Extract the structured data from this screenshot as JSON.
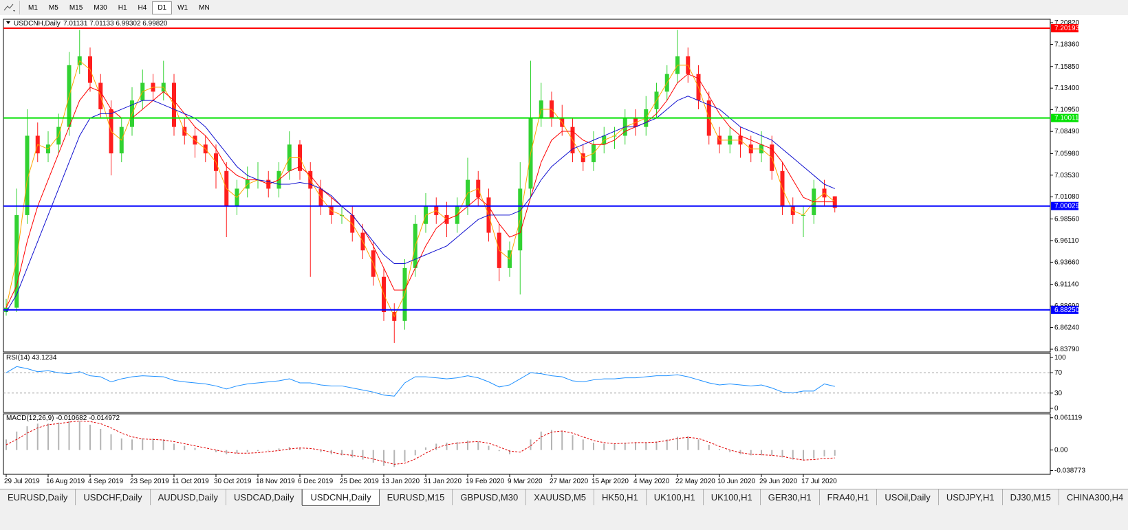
{
  "toolbar": {
    "timeframes": [
      "M1",
      "M5",
      "M15",
      "M30",
      "H1",
      "H4",
      "D1",
      "W1",
      "MN"
    ],
    "active": "D1"
  },
  "tabs": {
    "items": [
      "EURUSD,Daily",
      "USDCHF,Daily",
      "AUDUSD,Daily",
      "USDCAD,Daily",
      "USDCNH,Daily",
      "EURUSD,M15",
      "GBPUSD,M30",
      "XAUUSD,M5",
      "HK50,H1",
      "UK100,H1",
      "UK100,H1",
      "GER30,H1",
      "FRA40,H1",
      "USOil,Daily",
      "USDJPY,H1",
      "DJ30,M15",
      "CHINA300,H4"
    ],
    "active": "USDCNH,Daily"
  },
  "chart_data": [
    {
      "type": "candlestick",
      "title": "USDCNH,Daily",
      "subtitle": "7.01131 7.01133 6.99302 6.99820",
      "categories": [
        "29 Jul 2019",
        null,
        null,
        null,
        "16 Aug 2019",
        null,
        null,
        null,
        "4 Sep 2019",
        null,
        null,
        null,
        "23 Sep 2019",
        null,
        null,
        null,
        "11 Oct 2019",
        null,
        null,
        null,
        "30 Oct 2019",
        null,
        null,
        null,
        "18 Nov 2019",
        null,
        null,
        null,
        "6 Dec 2019",
        null,
        null,
        null,
        "25 Dec 2019",
        null,
        null,
        null,
        "13 Jan 2020",
        null,
        null,
        null,
        "31 Jan 2020",
        null,
        null,
        null,
        "19 Feb 2020",
        null,
        null,
        null,
        "9 Mar 2020",
        null,
        null,
        null,
        "27 Mar 2020",
        null,
        null,
        null,
        "15 Apr 2020",
        null,
        null,
        null,
        "4 May 2020",
        null,
        null,
        null,
        "22 May 2020",
        null,
        null,
        null,
        "10 Jun 2020",
        null,
        null,
        null,
        "29 Jun 2020",
        null,
        null,
        null,
        "17 Jul 2020",
        null,
        null,
        null
      ],
      "open": [
        6.88,
        6.885,
        6.99,
        7.08,
        7.06,
        7.07,
        7.09,
        7.16,
        7.17,
        7.14,
        7.11,
        7.06,
        7.09,
        7.12,
        7.14,
        7.13,
        7.14,
        7.09,
        7.08,
        7.07,
        7.06,
        7.04,
        7.0,
        7.02,
        7.03,
        7.03,
        7.02,
        7.04,
        7.07,
        7.04,
        7.02,
        7.0,
        6.99,
        6.99,
        6.97,
        6.95,
        6.92,
        6.88,
        6.87,
        6.93,
        6.98,
        7.0,
        6.99,
        6.98,
        7.0,
        7.03,
        7.01,
        6.97,
        6.93,
        6.95,
        7.02,
        7.1,
        7.12,
        7.1,
        7.09,
        7.06,
        7.05,
        7.07,
        7.08,
        7.08,
        7.1,
        7.09,
        7.11,
        7.13,
        7.15,
        7.17,
        7.15,
        7.12,
        7.08,
        7.07,
        7.08,
        7.07,
        7.06,
        7.07,
        7.04,
        7.0,
        6.99,
        6.99,
        7.02,
        7.01131
      ],
      "high": [
        6.895,
        7.02,
        7.11,
        7.095,
        7.085,
        7.105,
        7.175,
        7.2,
        7.18,
        7.15,
        7.12,
        7.1,
        7.135,
        7.155,
        7.15,
        7.165,
        7.15,
        7.1,
        7.09,
        7.08,
        7.07,
        7.05,
        7.03,
        7.045,
        7.05,
        7.04,
        7.05,
        7.085,
        7.075,
        7.05,
        7.03,
        7.01,
        7.0,
        7.0,
        6.98,
        6.96,
        6.93,
        6.89,
        6.94,
        6.99,
        7.015,
        7.01,
        7.005,
        7.01,
        7.055,
        7.04,
        7.02,
        6.98,
        6.96,
        7.05,
        7.165,
        7.14,
        7.13,
        7.115,
        7.1,
        7.07,
        7.085,
        7.09,
        7.09,
        7.11,
        7.11,
        7.125,
        7.14,
        7.16,
        7.2,
        7.18,
        7.16,
        7.13,
        7.09,
        7.09,
        7.09,
        7.08,
        7.085,
        7.08,
        7.05,
        7.01,
        7.0,
        7.03,
        7.03,
        7.01133
      ],
      "low": [
        6.876,
        6.88,
        6.98,
        7.05,
        7.05,
        7.06,
        7.08,
        7.15,
        7.13,
        7.1,
        7.035,
        7.05,
        7.08,
        7.11,
        7.12,
        7.12,
        7.08,
        7.07,
        7.055,
        7.05,
        7.02,
        6.965,
        6.99,
        7.01,
        7.02,
        7.01,
        7.01,
        7.03,
        7.03,
        6.92,
        6.99,
        6.98,
        6.98,
        6.96,
        6.94,
        6.91,
        6.87,
        6.845,
        6.86,
        6.92,
        6.97,
        6.98,
        6.965,
        6.97,
        6.99,
        7.0,
        6.96,
        6.915,
        6.92,
        6.9,
        7.01,
        7.09,
        7.09,
        7.08,
        7.05,
        7.04,
        7.04,
        7.06,
        7.065,
        7.07,
        7.08,
        7.08,
        7.1,
        7.12,
        7.14,
        7.14,
        7.11,
        7.07,
        7.06,
        7.06,
        7.055,
        7.05,
        7.05,
        7.03,
        6.99,
        6.98,
        6.965,
        6.98,
        7.0,
        6.99302
      ],
      "close": [
        6.885,
        6.99,
        7.08,
        7.06,
        7.07,
        7.09,
        7.16,
        7.17,
        7.14,
        7.11,
        7.06,
        7.09,
        7.12,
        7.14,
        7.13,
        7.14,
        7.09,
        7.08,
        7.07,
        7.06,
        7.04,
        7.0,
        7.02,
        7.03,
        7.03,
        7.02,
        7.04,
        7.07,
        7.04,
        7.02,
        7.0,
        6.99,
        6.99,
        6.97,
        6.95,
        6.92,
        6.88,
        6.87,
        6.93,
        6.98,
        7.0,
        6.99,
        6.98,
        7.0,
        7.03,
        7.01,
        6.97,
        6.93,
        6.95,
        7.02,
        7.1,
        7.12,
        7.1,
        7.09,
        7.06,
        7.05,
        7.07,
        7.08,
        7.08,
        7.1,
        7.09,
        7.11,
        7.13,
        7.15,
        7.17,
        7.15,
        7.12,
        7.08,
        7.07,
        7.08,
        7.07,
        7.06,
        7.07,
        7.04,
        7.0,
        6.99,
        6.99,
        7.02,
        7.01,
        6.9982
      ],
      "up_color": "#32d232",
      "down_color": "#ff1e1e",
      "series": [
        {
          "color": "#ffa500",
          "values": [
            6.885,
            6.94,
            7.03,
            7.07,
            7.065,
            7.08,
            7.125,
            7.165,
            7.155,
            7.125,
            7.085,
            7.075,
            7.105,
            7.13,
            7.135,
            7.135,
            7.115,
            7.085,
            7.075,
            7.065,
            7.05,
            7.02,
            7.01,
            7.025,
            7.03,
            7.025,
            7.03,
            7.055,
            7.055,
            7.03,
            7.01,
            6.995,
            6.99,
            6.98,
            6.96,
            6.935,
            6.9,
            6.875,
            6.9,
            6.955,
            6.99,
            6.995,
            6.985,
            6.99,
            7.015,
            7.02,
            6.99,
            6.95,
            6.94,
            6.985,
            7.06,
            7.11,
            7.11,
            7.095,
            7.075,
            7.055,
            7.06,
            7.075,
            7.08,
            7.09,
            7.095,
            7.1,
            7.12,
            7.14,
            7.16,
            7.16,
            7.135,
            7.1,
            7.075,
            7.075,
            7.075,
            7.065,
            7.065,
            7.055,
            7.02,
            6.995,
            6.99,
            7.005,
            7.015,
            7.005
          ]
        },
        {
          "color": "#ff0000",
          "values": [
            6.885,
            6.91,
            6.96,
            7.0,
            7.03,
            7.06,
            7.09,
            7.12,
            7.135,
            7.13,
            7.11,
            7.1,
            7.1,
            7.11,
            7.12,
            7.13,
            7.12,
            7.105,
            7.09,
            7.08,
            7.065,
            7.045,
            7.035,
            7.03,
            7.03,
            7.025,
            7.03,
            7.04,
            7.045,
            7.035,
            7.02,
            7.01,
            7.0,
            6.99,
            6.975,
            6.955,
            6.93,
            6.905,
            6.905,
            6.93,
            6.955,
            6.975,
            6.985,
            6.99,
            7.0,
            7.01,
            7.0,
            6.98,
            6.965,
            6.97,
            7.01,
            7.05,
            7.075,
            7.085,
            7.085,
            7.075,
            7.07,
            7.07,
            7.075,
            7.085,
            7.09,
            7.095,
            7.105,
            7.12,
            7.14,
            7.15,
            7.145,
            7.125,
            7.105,
            7.09,
            7.08,
            7.075,
            7.07,
            7.065,
            7.05,
            7.03,
            7.01,
            7.005,
            7.005,
            7.005
          ]
        },
        {
          "color": "#1010d0",
          "values": [
            6.88,
            6.9,
            6.93,
            6.96,
            6.99,
            7.02,
            7.05,
            7.08,
            7.1,
            7.105,
            7.105,
            7.11,
            7.115,
            7.12,
            7.12,
            7.115,
            7.11,
            7.105,
            7.1,
            7.09,
            7.075,
            7.06,
            7.045,
            7.035,
            7.03,
            7.028,
            7.025,
            7.025,
            7.027,
            7.025,
            7.02,
            7.012,
            7.0,
            6.99,
            6.975,
            6.96,
            6.945,
            6.935,
            6.935,
            6.94,
            6.945,
            6.95,
            6.955,
            6.965,
            6.975,
            6.985,
            6.99,
            6.99,
            6.99,
            6.995,
            7.01,
            7.03,
            7.045,
            7.055,
            7.065,
            7.07,
            7.075,
            7.08,
            7.085,
            7.09,
            7.09,
            7.095,
            7.1,
            7.11,
            7.12,
            7.125,
            7.12,
            7.115,
            7.11,
            7.1,
            7.09,
            7.085,
            7.08,
            7.075,
            7.065,
            7.055,
            7.045,
            7.035,
            7.025,
            7.02
          ]
        }
      ],
      "hlines": [
        {
          "value": 7.20193,
          "color": "#ff0000"
        },
        {
          "value": 7.10011,
          "color": "#00e000"
        },
        {
          "value": 7.00029,
          "color": "#0000ff"
        },
        {
          "value": 6.8825,
          "label": "6.88250",
          "color": "#0000ff"
        }
      ],
      "ylim": [
        6.8348,
        7.2121
      ],
      "yticks": [
        {
          "value": 7.2082,
          "label": "7.20820"
        },
        {
          "value": 7.1836,
          "label": "7.18360"
        },
        {
          "value": 7.1585,
          "label": "7.15850"
        },
        {
          "value": 7.134,
          "label": "7.13400"
        },
        {
          "value": 7.1095,
          "label": "7.10950"
        },
        {
          "value": 7.0849,
          "label": "7.08490"
        },
        {
          "value": 7.0598,
          "label": "7.05980"
        },
        {
          "value": 7.0353,
          "label": "7.03530"
        },
        {
          "value": 7.0108,
          "label": "7.01080"
        },
        {
          "value": 6.9856,
          "label": "6.98560"
        },
        {
          "value": 6.9611,
          "label": "6.96110"
        },
        {
          "value": 6.9366,
          "label": "6.93660"
        },
        {
          "value": 6.9114,
          "label": "6.91140"
        },
        {
          "value": 6.8869,
          "label": "6.88690"
        },
        {
          "value": 6.8624,
          "label": "6.86240"
        },
        {
          "value": 6.8379,
          "label": "6.83790"
        }
      ]
    },
    {
      "type": "line",
      "title": "RSI(14) 43.1234",
      "color": "#1e90ff",
      "values": [
        70,
        82,
        78,
        72,
        74,
        70,
        68,
        72,
        64,
        62,
        52,
        58,
        62,
        64,
        63,
        62,
        55,
        52,
        50,
        48,
        44,
        38,
        44,
        48,
        50,
        52,
        54,
        58,
        50,
        50,
        46,
        44,
        44,
        40,
        36,
        32,
        26,
        24,
        50,
        62,
        62,
        60,
        58,
        60,
        64,
        60,
        52,
        42,
        46,
        58,
        70,
        68,
        64,
        62,
        54,
        52,
        56,
        58,
        58,
        60,
        60,
        62,
        64,
        64,
        66,
        62,
        56,
        50,
        46,
        48,
        46,
        44,
        46,
        40,
        32,
        30,
        34,
        34,
        48,
        43.1234
      ],
      "levels": [
        70,
        30
      ],
      "ylim": [
        -8.1,
        108.1
      ],
      "yticks": [
        100,
        70,
        30,
        0
      ]
    },
    {
      "type": "macd",
      "title": "MACD(12,26,9) -0.010682 -0.014972",
      "color": "#b4b4b4",
      "signal_color": "#e00000",
      "values": [
        0.02,
        0.035,
        0.045,
        0.05,
        0.05,
        0.052,
        0.055,
        0.055,
        0.048,
        0.04,
        0.03,
        0.022,
        0.02,
        0.022,
        0.022,
        0.02,
        0.012,
        0.008,
        0.004,
        0.0,
        -0.004,
        -0.008,
        -0.006,
        -0.004,
        -0.002,
        -0.001,
        0.003,
        0.006,
        0.004,
        0.0,
        -0.004,
        -0.008,
        -0.01,
        -0.014,
        -0.018,
        -0.024,
        -0.03,
        -0.032,
        -0.022,
        -0.01,
        0.005,
        0.012,
        0.014,
        0.015,
        0.018,
        0.016,
        0.008,
        -0.002,
        -0.008,
        0.0,
        0.02,
        0.035,
        0.038,
        0.035,
        0.028,
        0.02,
        0.014,
        0.012,
        0.012,
        0.014,
        0.014,
        0.014,
        0.016,
        0.02,
        0.025,
        0.026,
        0.02,
        0.01,
        0.002,
        -0.004,
        -0.008,
        -0.01,
        -0.01,
        -0.01,
        -0.014,
        -0.018,
        -0.02,
        -0.016,
        -0.012,
        -0.010682
      ],
      "signal": [
        0.01,
        0.02,
        0.032,
        0.042,
        0.048,
        0.05,
        0.053,
        0.055,
        0.054,
        0.05,
        0.042,
        0.032,
        0.025,
        0.021,
        0.02,
        0.019,
        0.016,
        0.012,
        0.008,
        0.004,
        0.0,
        -0.004,
        -0.006,
        -0.006,
        -0.005,
        -0.003,
        -0.001,
        0.002,
        0.004,
        0.003,
        0.0,
        -0.004,
        -0.008,
        -0.01,
        -0.013,
        -0.017,
        -0.022,
        -0.027,
        -0.025,
        -0.017,
        -0.006,
        0.004,
        0.01,
        0.013,
        0.015,
        0.016,
        0.013,
        0.006,
        -0.002,
        -0.004,
        0.008,
        0.025,
        0.034,
        0.036,
        0.032,
        0.025,
        0.018,
        0.014,
        0.012,
        0.013,
        0.014,
        0.014,
        0.015,
        0.018,
        0.022,
        0.024,
        0.022,
        0.015,
        0.007,
        0.0,
        -0.005,
        -0.008,
        -0.009,
        -0.01,
        -0.012,
        -0.016,
        -0.019,
        -0.018,
        -0.016,
        -0.014972
      ],
      "ylim": [
        -0.046,
        0.0686
      ],
      "yticks": [
        0.061119,
        {
          "value": 0,
          "label": "0.00"
        },
        -0.038773
      ]
    }
  ]
}
